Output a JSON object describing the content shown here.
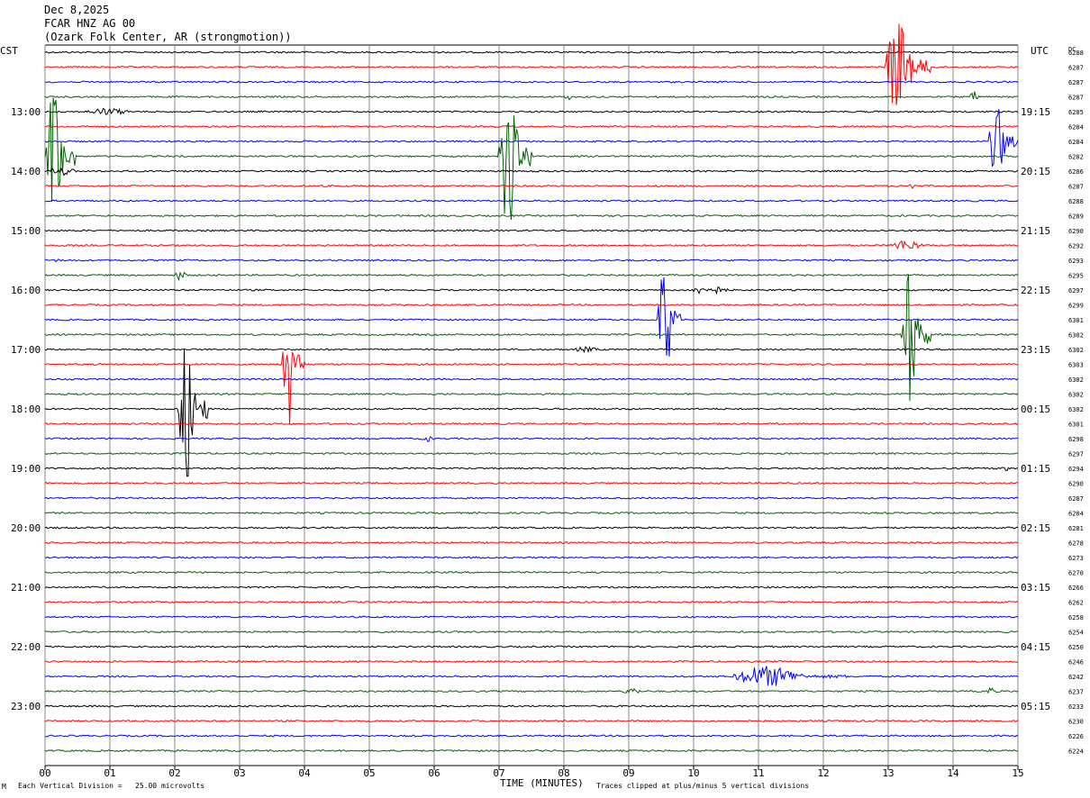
{
  "header": {
    "date": "Dec 8,2025",
    "station": "FCAR HNZ AG 00",
    "location": "(Ozark Folk Center, AR (strongmotion))"
  },
  "left_tz_label": "CST",
  "right_tz_label": "UTC",
  "dc_label": "DC",
  "footer": {
    "scale_note": "Each Vertical Division =   25.00 microvolts",
    "clip_note": "Traces clipped at plus/minus 5 vertical divisions",
    "corner_mark": "M"
  },
  "colors": {
    "black": "#000000",
    "red": "#ff0000",
    "blue": "#0000ff",
    "green": "#006400",
    "grid": "#888888"
  },
  "chart_data": {
    "type": "line",
    "title": "FCAR HNZ AG 00",
    "xlabel": "TIME (MINUTES)",
    "xlim": [
      0,
      15
    ],
    "x_ticks": [
      "00",
      "01",
      "02",
      "03",
      "04",
      "05",
      "06",
      "07",
      "08",
      "09",
      "10",
      "11",
      "12",
      "13",
      "14",
      "15"
    ],
    "trace_color_cycle": [
      "black",
      "red",
      "blue",
      "green"
    ],
    "left_hour_labels": [
      "13:00",
      "14:00",
      "15:00",
      "16:00",
      "17:00",
      "18:00",
      "19:00",
      "20:00",
      "21:00",
      "22:00",
      "23:00"
    ],
    "right_hour_labels": [
      "19:15",
      "20:15",
      "21:15",
      "22:15",
      "23:15",
      "00:15",
      "01:15",
      "02:15",
      "03:15",
      "04:15",
      "05:15"
    ],
    "hour_label_first_row": 4,
    "rows_per_hour": 4,
    "dc_offsets": [
      6288,
      6287,
      6287,
      6287,
      6285,
      6284,
      6284,
      6282,
      6286,
      6287,
      6288,
      6289,
      6290,
      6292,
      6293,
      6295,
      6297,
      6299,
      6301,
      6302,
      6302,
      6303,
      6302,
      6302,
      6302,
      6301,
      6298,
      6297,
      6294,
      6290,
      6287,
      6284,
      6281,
      6278,
      6273,
      6270,
      6266,
      6262,
      6258,
      6254,
      6250,
      6246,
      6242,
      6237,
      6233,
      6230,
      6226,
      6224
    ],
    "events": [
      {
        "row": 1,
        "minute": 12.95,
        "duration": 0.7,
        "amplitude": 55
      },
      {
        "row": 3,
        "minute": 14.25,
        "duration": 0.3,
        "amplitude": 6
      },
      {
        "row": 3,
        "minute": 8.0,
        "duration": 0.2,
        "amplitude": 4
      },
      {
        "row": 4,
        "minute": 0.6,
        "duration": 1.2,
        "amplitude": 4
      },
      {
        "row": 6,
        "minute": 14.55,
        "duration": 0.45,
        "amplitude": 40
      },
      {
        "row": 7,
        "minute": 0.02,
        "duration": 0.45,
        "amplitude": 80
      },
      {
        "row": 7,
        "minute": 7.0,
        "duration": 0.5,
        "amplitude": 80
      },
      {
        "row": 8,
        "minute": 0.0,
        "duration": 0.8,
        "amplitude": 5
      },
      {
        "row": 9,
        "minute": 13.3,
        "duration": 0.2,
        "amplitude": 5
      },
      {
        "row": 13,
        "minute": 13.0,
        "duration": 0.9,
        "amplitude": 6
      },
      {
        "row": 14,
        "minute": 0.15,
        "duration": 0.1,
        "amplitude": 6
      },
      {
        "row": 15,
        "minute": 2.0,
        "duration": 0.3,
        "amplitude": 6
      },
      {
        "row": 16,
        "minute": 9.9,
        "duration": 1.1,
        "amplitude": 5
      },
      {
        "row": 18,
        "minute": 9.45,
        "duration": 0.35,
        "amplitude": 70
      },
      {
        "row": 19,
        "minute": 13.2,
        "duration": 0.45,
        "amplitude": 80
      },
      {
        "row": 20,
        "minute": 8.1,
        "duration": 0.8,
        "amplitude": 3
      },
      {
        "row": 21,
        "minute": 3.65,
        "duration": 0.35,
        "amplitude": 75
      },
      {
        "row": 24,
        "minute": 2.05,
        "duration": 0.45,
        "amplitude": 80
      },
      {
        "row": 26,
        "minute": 5.8,
        "duration": 0.3,
        "amplitude": 4
      },
      {
        "row": 28,
        "minute": 14.7,
        "duration": 0.3,
        "amplitude": 5
      },
      {
        "row": 42,
        "minute": 10.6,
        "duration": 1.8,
        "amplitude": 12
      },
      {
        "row": 43,
        "minute": 8.9,
        "duration": 0.5,
        "amplitude": 4
      },
      {
        "row": 43,
        "minute": 14.5,
        "duration": 0.3,
        "amplitude": 5
      }
    ]
  }
}
